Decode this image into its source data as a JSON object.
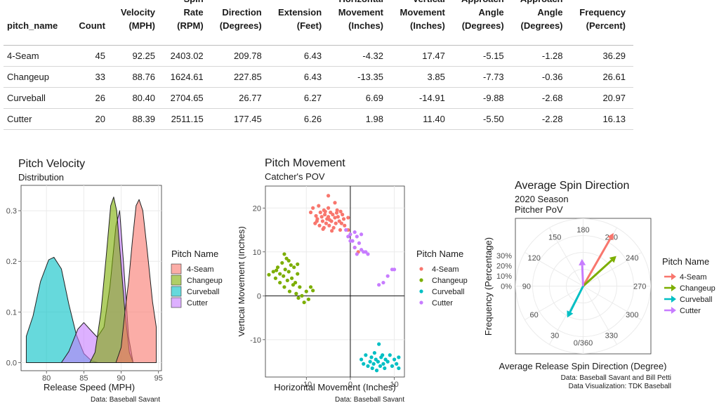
{
  "table": {
    "headers": [
      [
        "pitch_name"
      ],
      [
        "Count"
      ],
      [
        "Velocity",
        "(MPH)"
      ],
      [
        "Spin",
        "Rate",
        "(RPM)"
      ],
      [
        "Direction",
        "(Degrees)"
      ],
      [
        "Extension",
        "(Feet)"
      ],
      [
        "Horizontal",
        "Movement",
        "(Inches)"
      ],
      [
        "Vertical",
        "Movement",
        "(Inches)"
      ],
      [
        "Approach",
        "Angle",
        "(Degrees)"
      ],
      [
        "Approach",
        "Angle",
        "(Degrees)"
      ],
      [
        "Frequency",
        "(Percent)"
      ]
    ],
    "rows": [
      [
        "4-Seam",
        "45",
        "92.25",
        "2403.02",
        "209.78",
        "6.43",
        "-4.32",
        "17.47",
        "-5.15",
        "-1.28",
        "36.29"
      ],
      [
        "Changeup",
        "33",
        "88.76",
        "1624.61",
        "227.85",
        "6.43",
        "-13.35",
        "3.85",
        "-7.73",
        "-0.36",
        "26.61"
      ],
      [
        "Curveball",
        "26",
        "80.40",
        "2704.65",
        "26.77",
        "6.27",
        "6.69",
        "-14.91",
        "-9.88",
        "-2.68",
        "20.97"
      ],
      [
        "Cutter",
        "20",
        "88.39",
        "2511.15",
        "177.45",
        "6.26",
        "1.98",
        "11.40",
        "-5.50",
        "-2.28",
        "16.13"
      ]
    ]
  },
  "colors": {
    "4-Seam": "#F8766D",
    "Changeup": "#7CAE00",
    "Curveball": "#00BFC4",
    "Cutter": "#C77CFF"
  },
  "chart_data": [
    {
      "type": "area",
      "title": "Pitch Velocity",
      "subtitle": "Distribution",
      "xlabel": "Release Speed (MPH)",
      "ylabel": "",
      "xlim": [
        76.6,
        95.4
      ],
      "ylim": [
        -0.016,
        0.35
      ],
      "xticks": [
        80,
        85,
        90,
        95
      ],
      "yticks": [
        0.0,
        0.1,
        0.2,
        0.3
      ],
      "ytick_labels": [
        "0.0",
        "0.1",
        "0.2",
        "0.3"
      ],
      "legend_title": "Pitch Name",
      "legend_position": "right",
      "caption": "Data: Baseball Savant",
      "series": [
        {
          "name": "Curveball",
          "points": [
            [
              77.3,
              0.052
            ],
            [
              78.2,
              0.092
            ],
            [
              79.2,
              0.16
            ],
            [
              80.3,
              0.203
            ],
            [
              81.0,
              0.208
            ],
            [
              82.0,
              0.185
            ],
            [
              83.0,
              0.115
            ],
            [
              84.0,
              0.055
            ],
            [
              85.0,
              0.018
            ],
            [
              86.0,
              0.004
            ],
            [
              86.9,
              0.0
            ]
          ]
        },
        {
          "name": "Cutter",
          "points": [
            [
              82.0,
              0.0
            ],
            [
              83.0,
              0.022
            ],
            [
              84.2,
              0.066
            ],
            [
              85.0,
              0.079
            ],
            [
              85.8,
              0.066
            ],
            [
              86.8,
              0.05
            ],
            [
              87.7,
              0.07
            ],
            [
              88.5,
              0.15
            ],
            [
              89.3,
              0.27
            ],
            [
              89.8,
              0.3
            ],
            [
              90.3,
              0.2
            ],
            [
              91.0,
              0.05
            ],
            [
              91.6,
              0.0
            ]
          ]
        },
        {
          "name": "Changeup",
          "points": [
            [
              85.8,
              0.0
            ],
            [
              86.5,
              0.02
            ],
            [
              87.3,
              0.1
            ],
            [
              88.0,
              0.21
            ],
            [
              88.6,
              0.31
            ],
            [
              89.0,
              0.327
            ],
            [
              89.4,
              0.3
            ],
            [
              89.9,
              0.21
            ],
            [
              90.5,
              0.1
            ],
            [
              91.1,
              0.02
            ],
            [
              91.6,
              0.0
            ]
          ]
        },
        {
          "name": "4-Seam",
          "points": [
            [
              89.3,
              0.0
            ],
            [
              90.0,
              0.03
            ],
            [
              90.5,
              0.1
            ],
            [
              91.0,
              0.16
            ],
            [
              91.5,
              0.24
            ],
            [
              92.0,
              0.31
            ],
            [
              92.4,
              0.322
            ],
            [
              92.9,
              0.3
            ],
            [
              93.5,
              0.22
            ],
            [
              94.2,
              0.12
            ],
            [
              94.7,
              0.07
            ]
          ]
        }
      ]
    },
    {
      "type": "scatter",
      "title": "Pitch Movement",
      "subtitle": "Catcher's POV",
      "xlabel": "Horizontal Movement (Inches)",
      "ylabel": "Vertical Movement (Inches)",
      "xlim": [
        -19.3,
        12.3
      ],
      "ylim": [
        -18.5,
        25
      ],
      "xticks": [
        -10,
        0,
        10
      ],
      "yticks": [
        -10,
        0,
        10,
        20
      ],
      "legend_title": "Pitch Name",
      "legend_position": "right",
      "caption": "Data: Baseball Savant",
      "series": [
        {
          "name": "4-Seam",
          "points": [
            [
              -9.0,
              19.0
            ],
            [
              -8.5,
              20.0
            ],
            [
              -8.0,
              16.5
            ],
            [
              -7.8,
              18.2
            ],
            [
              -7.5,
              17.5
            ],
            [
              -7.2,
              20.5
            ],
            [
              -7.0,
              16.0
            ],
            [
              -6.8,
              19.0
            ],
            [
              -6.5,
              18.0
            ],
            [
              -6.3,
              17.0
            ],
            [
              -6.0,
              15.5
            ],
            [
              -6.0,
              19.5
            ],
            [
              -5.8,
              18.5
            ],
            [
              -5.5,
              16.5
            ],
            [
              -5.3,
              17.5
            ],
            [
              -5.0,
              18.0
            ],
            [
              -5.0,
              20.0
            ],
            [
              -4.8,
              16.0
            ],
            [
              -4.5,
              19.0
            ],
            [
              -4.3,
              17.0
            ],
            [
              -4.0,
              18.5
            ],
            [
              -3.8,
              15.5
            ],
            [
              -3.5,
              17.8
            ],
            [
              -3.3,
              16.5
            ],
            [
              -3.0,
              19.5
            ],
            [
              -2.8,
              18.0
            ],
            [
              -2.5,
              17.0
            ],
            [
              -2.3,
              15.0
            ],
            [
              -2.0,
              16.5
            ],
            [
              -1.8,
              18.5
            ],
            [
              -1.5,
              17.5
            ],
            [
              -1.3,
              16.0
            ],
            [
              -5.0,
              22.8
            ],
            [
              -3.5,
              21.2
            ],
            [
              -0.5,
              17.8
            ],
            [
              -0.5,
              15.0
            ],
            [
              1.0,
              11.0
            ],
            [
              1.8,
              10.0
            ],
            [
              -6.2,
              15.2
            ],
            [
              -4.2,
              14.8
            ],
            [
              -7.6,
              17.0
            ],
            [
              -2.2,
              19.2
            ],
            [
              -4.7,
              17.3
            ],
            [
              -5.7,
              19.2
            ],
            [
              -3.1,
              18.9
            ]
          ]
        },
        {
          "name": "Changeup",
          "points": [
            [
              -18.5,
              4.8
            ],
            [
              -17.5,
              5.5
            ],
            [
              -17.0,
              4.0
            ],
            [
              -16.5,
              6.5
            ],
            [
              -16.0,
              5.0
            ],
            [
              -16.0,
              3.0
            ],
            [
              -15.5,
              7.5
            ],
            [
              -15.2,
              4.5
            ],
            [
              -15.0,
              9.5
            ],
            [
              -15.0,
              2.0
            ],
            [
              -14.8,
              6.0
            ],
            [
              -14.5,
              8.5
            ],
            [
              -14.3,
              3.5
            ],
            [
              -14.0,
              5.5
            ],
            [
              -13.8,
              1.0
            ],
            [
              -13.5,
              7.0
            ],
            [
              -13.3,
              4.0
            ],
            [
              -13.0,
              2.5
            ],
            [
              -12.8,
              6.5
            ],
            [
              -12.5,
              3.0
            ],
            [
              -12.3,
              0.5
            ],
            [
              -12.0,
              5.0
            ],
            [
              -11.8,
              -0.5
            ],
            [
              -11.5,
              2.0
            ],
            [
              -11.0,
              0.0
            ],
            [
              -10.5,
              -1.5
            ],
            [
              -10.0,
              1.0
            ],
            [
              -9.5,
              -0.8
            ],
            [
              -9.0,
              2.0
            ],
            [
              -8.5,
              1.2
            ],
            [
              -14.0,
              8.0
            ],
            [
              -16.8,
              5.8
            ],
            [
              -12.0,
              7.2
            ]
          ]
        },
        {
          "name": "Curveball",
          "points": [
            [
              2.5,
              -14.5
            ],
            [
              3.0,
              -15.5
            ],
            [
              3.5,
              -13.5
            ],
            [
              4.0,
              -16.0
            ],
            [
              4.5,
              -15.0
            ],
            [
              4.8,
              -14.0
            ],
            [
              5.0,
              -16.5
            ],
            [
              5.3,
              -15.5
            ],
            [
              5.5,
              -13.0
            ],
            [
              5.8,
              -14.5
            ],
            [
              6.0,
              -17.0
            ],
            [
              6.3,
              -15.0
            ],
            [
              6.5,
              -11.0
            ],
            [
              6.8,
              -16.0
            ],
            [
              7.0,
              -14.0
            ],
            [
              7.3,
              -13.5
            ],
            [
              7.5,
              -15.5
            ],
            [
              7.8,
              -16.5
            ],
            [
              8.0,
              -14.5
            ],
            [
              8.5,
              -15.0
            ],
            [
              9.0,
              -13.5
            ],
            [
              9.5,
              -16.0
            ],
            [
              10.0,
              -14.5
            ],
            [
              10.5,
              -15.5
            ],
            [
              11.0,
              -14.0
            ],
            [
              11.0,
              -16.5
            ]
          ]
        },
        {
          "name": "Cutter",
          "points": [
            [
              -1.0,
              15.0
            ],
            [
              -0.5,
              13.5
            ],
            [
              0.0,
              14.0
            ],
            [
              0.5,
              12.5
            ],
            [
              1.0,
              14.5
            ],
            [
              1.5,
              13.5
            ],
            [
              2.0,
              12.0
            ],
            [
              2.5,
              14.0
            ],
            [
              1.5,
              9.5
            ],
            [
              3.0,
              10.0
            ],
            [
              4.0,
              9.5
            ],
            [
              2.5,
              10.5
            ],
            [
              6.5,
              2.5
            ],
            [
              8.5,
              4.5
            ],
            [
              7.5,
              3.0
            ],
            [
              9.5,
              6.0
            ],
            [
              10.0,
              6.0
            ],
            [
              0.0,
              12.5
            ],
            [
              1.0,
              11.0
            ],
            [
              3.5,
              10.0
            ]
          ]
        }
      ]
    },
    {
      "type": "polar",
      "title": "Average Spin Direction",
      "subtitle": "2020 Season",
      "subtitle2": "Pitcher PoV",
      "xlabel": "Average Release Spin Direction (Degree)",
      "ylabel": "Frequency (Percentage)",
      "angle_ticks": [
        0,
        30,
        60,
        90,
        120,
        150,
        180,
        210,
        240,
        270,
        300,
        330
      ],
      "angle_labels": [
        "0/360",
        "30",
        "60",
        "90",
        "120",
        "150",
        "180",
        "210",
        "240",
        "270",
        "300",
        "330"
      ],
      "radial_ticks": [
        0,
        10,
        20,
        30
      ],
      "radial_labels": [
        "0%",
        "10%",
        "20%",
        "30%"
      ],
      "rmax": 40,
      "legend_title": "Pitch Name",
      "legend_position": "right",
      "caption": "Data: Baseball Savant and Bill Petti",
      "caption2": "Data Visualization: TDK Baseball",
      "series": [
        {
          "name": "4-Seam",
          "direction": 209.78,
          "frequency": 36.29
        },
        {
          "name": "Changeup",
          "direction": 227.85,
          "frequency": 26.61
        },
        {
          "name": "Curveball",
          "direction": 26.77,
          "frequency": 20.97
        },
        {
          "name": "Cutter",
          "direction": 177.45,
          "frequency": 16.13
        }
      ]
    }
  ]
}
